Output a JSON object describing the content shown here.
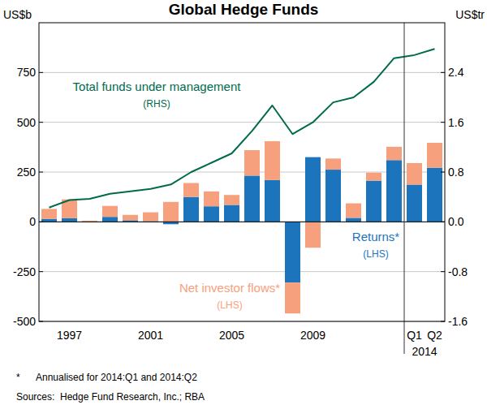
{
  "chart_data": {
    "type": "bar",
    "title": "Global Hedge Funds",
    "ylabel": "US$b",
    "y2label": "US$tr",
    "stacked": true,
    "grid": true,
    "categories": [
      null,
      "1997",
      null,
      null,
      null,
      "2001",
      null,
      null,
      null,
      "2005",
      null,
      null,
      null,
      "2009",
      null,
      null,
      null,
      null,
      "Q1",
      "Q2"
    ],
    "series": [
      {
        "name": "Returns*",
        "type": "bar",
        "color": "#1c75bc",
        "values": [
          15,
          18,
          1,
          25,
          8,
          3,
          -12,
          125,
          78,
          85,
          232,
          210,
          -305,
          325,
          262,
          20,
          207,
          310,
          187,
          272
        ]
      },
      {
        "name": "Net investor flows*",
        "type": "bar",
        "color": "#f7a07e",
        "values": [
          50,
          95,
          5,
          55,
          27,
          45,
          100,
          70,
          75,
          50,
          128,
          195,
          -155,
          -130,
          56,
          73,
          40,
          67,
          108,
          125
        ]
      },
      {
        "name": "Total funds under management",
        "type": "line",
        "axis": "y2",
        "color": "#006a4d",
        "values": [
          0.23,
          0.35,
          0.37,
          0.45,
          0.49,
          0.53,
          0.6,
          0.8,
          0.95,
          1.1,
          1.46,
          1.87,
          1.41,
          1.6,
          1.92,
          2.0,
          2.25,
          2.63,
          2.68,
          2.78
        ]
      }
    ],
    "ylim": [
      -500,
      1000
    ],
    "yticks": [
      -500,
      -250,
      0,
      250,
      500,
      750
    ],
    "y2lim": [
      -1.6,
      3.2
    ],
    "y2ticks": [
      -1.6,
      -0.8,
      {
        "value": 0,
        "label": "0.0"
      },
      0.8,
      1.6,
      2.4
    ],
    "annotations": [
      "(RHS)",
      "(LHS)",
      "(LHS)",
      "2014"
    ],
    "notes": [
      "*      Annualised for 2014:Q1 and 2014:Q2",
      "Sources:  Hedge Fund Research, Inc.; RBA"
    ]
  }
}
